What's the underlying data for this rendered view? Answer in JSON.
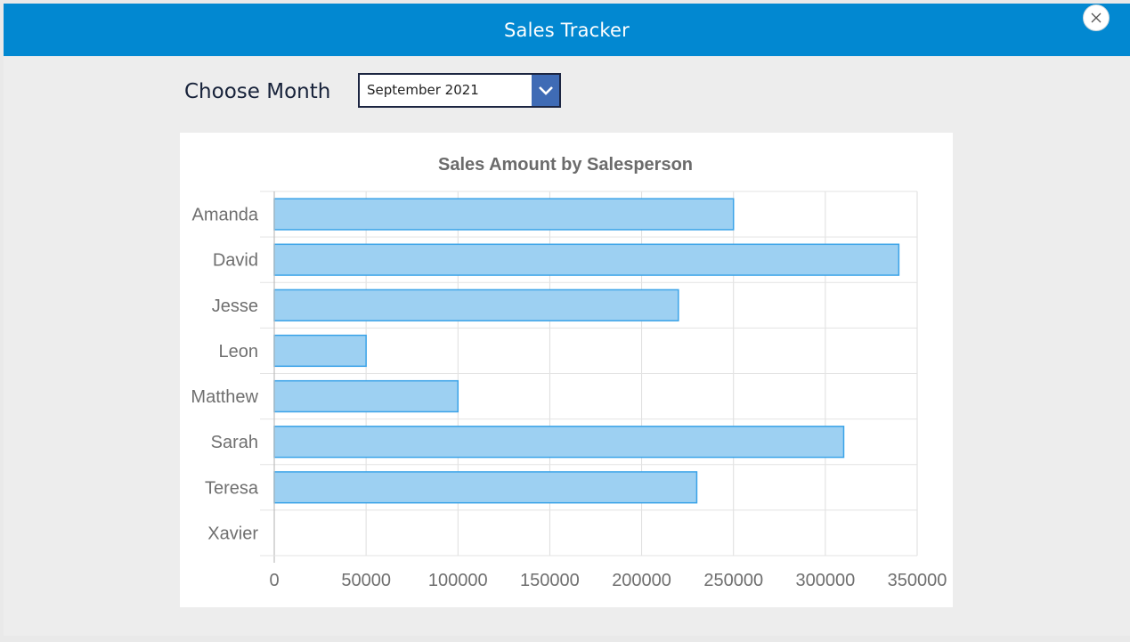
{
  "window": {
    "title": "Sales Tracker"
  },
  "controls": {
    "month_label": "Choose Month",
    "month_selected": "September 2021"
  },
  "colors": {
    "titlebar": "#0288d1",
    "bar_fill": "#9dd0f2",
    "bar_stroke": "#3ba3e8",
    "dropdown_button": "#3f6bb5"
  },
  "icons": {
    "close": "close-icon",
    "dropdown": "chevron-down-icon"
  },
  "chart_data": {
    "type": "bar",
    "orientation": "horizontal",
    "title": "Sales Amount by Salesperson",
    "categories": [
      "Amanda",
      "David",
      "Jesse",
      "Leon",
      "Matthew",
      "Sarah",
      "Teresa",
      "Xavier"
    ],
    "values": [
      250000,
      340000,
      220000,
      50000,
      100000,
      310000,
      230000,
      0
    ],
    "xlim": [
      0,
      350000
    ],
    "x_ticks": [
      "0",
      "50000",
      "100000",
      "150000",
      "200000",
      "250000",
      "300000",
      "350000"
    ],
    "grid": true,
    "legend": "none"
  }
}
